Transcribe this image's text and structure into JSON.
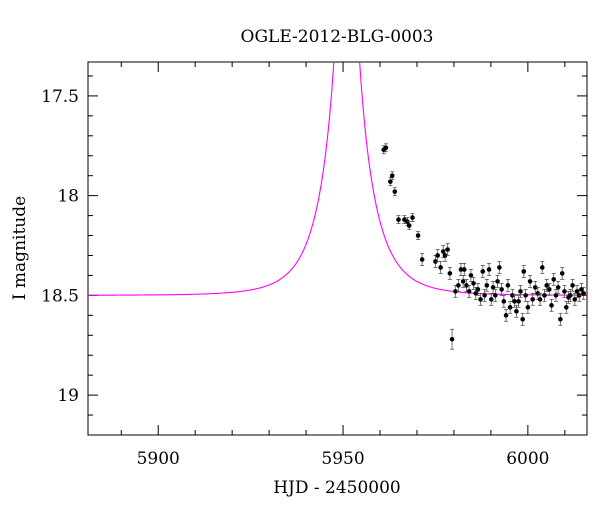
{
  "chart_data": {
    "type": "scatter",
    "title": "OGLE-2012-BLG-0003",
    "xlabel": "HJD - 2450000",
    "ylabel": "I magnitude",
    "xlim": [
      5881,
      6016
    ],
    "ylim": [
      17.33,
      19.2
    ],
    "y_inverted": true,
    "x_ticks": [
      5900,
      5950,
      6000
    ],
    "y_ticks": [
      17.5,
      18,
      18.5,
      19
    ],
    "x_tick_labels": [
      "5900",
      "5950",
      "6000"
    ],
    "y_tick_labels": [
      "17.5",
      "18",
      "18.5",
      "19"
    ],
    "grid": false,
    "model_color": "#ff00ff",
    "point_color": "#000000",
    "model": {
      "type": "pspl",
      "baseline_mag": 18.5,
      "t0": 5951,
      "tE": 9.8,
      "u0": 0.002
    },
    "series": [
      {
        "points": [
          [
            5961.0,
            17.77,
            0.02
          ],
          [
            5961.6,
            17.76,
            0.02
          ],
          [
            5962.8,
            17.93,
            0.02
          ],
          [
            5963.3,
            17.9,
            0.02
          ],
          [
            5964.0,
            17.98,
            0.02
          ],
          [
            5965.0,
            18.12,
            0.02
          ],
          [
            5966.6,
            18.12,
            0.02
          ],
          [
            5967.4,
            18.13,
            0.02
          ],
          [
            5967.9,
            18.15,
            0.02
          ],
          [
            5968.8,
            18.11,
            0.02
          ],
          [
            5970.3,
            18.2,
            0.02
          ],
          [
            5971.4,
            18.32,
            0.03
          ],
          [
            5975.0,
            18.33,
            0.03
          ],
          [
            5975.6,
            18.3,
            0.03
          ],
          [
            5976.4,
            18.36,
            0.03
          ],
          [
            5977.1,
            18.28,
            0.03
          ],
          [
            5977.6,
            18.3,
            0.03
          ],
          [
            5978.3,
            18.27,
            0.03
          ],
          [
            5978.9,
            18.39,
            0.03
          ],
          [
            5979.5,
            18.72,
            0.05
          ],
          [
            5980.4,
            18.48,
            0.03
          ],
          [
            5981.2,
            18.45,
            0.03
          ],
          [
            5981.9,
            18.37,
            0.03
          ],
          [
            5982.5,
            18.43,
            0.03
          ],
          [
            5982.8,
            18.37,
            0.03
          ],
          [
            5983.4,
            18.45,
            0.03
          ],
          [
            5984.1,
            18.48,
            0.03
          ],
          [
            5984.6,
            18.4,
            0.03
          ],
          [
            5985.3,
            18.44,
            0.03
          ],
          [
            5985.9,
            18.49,
            0.03
          ],
          [
            5986.5,
            18.47,
            0.03
          ],
          [
            5987.2,
            18.52,
            0.03
          ],
          [
            5987.8,
            18.38,
            0.03
          ],
          [
            5988.3,
            18.5,
            0.03
          ],
          [
            5988.9,
            18.45,
            0.03
          ],
          [
            5989.5,
            18.37,
            0.03
          ],
          [
            5990.1,
            18.52,
            0.03
          ],
          [
            5990.6,
            18.46,
            0.03
          ],
          [
            5991.2,
            18.5,
            0.03
          ],
          [
            5991.8,
            18.43,
            0.03
          ],
          [
            5992.3,
            18.36,
            0.03
          ],
          [
            5992.9,
            18.47,
            0.03
          ],
          [
            5993.5,
            18.53,
            0.03
          ],
          [
            5994.1,
            18.6,
            0.03
          ],
          [
            5994.6,
            18.45,
            0.03
          ],
          [
            5995.2,
            18.56,
            0.03
          ],
          [
            5995.8,
            18.5,
            0.03
          ],
          [
            5996.4,
            18.53,
            0.03
          ],
          [
            5996.9,
            18.58,
            0.03
          ],
          [
            5997.5,
            18.53,
            0.03
          ],
          [
            5998.0,
            18.48,
            0.03
          ],
          [
            5998.6,
            18.62,
            0.03
          ],
          [
            5998.9,
            18.38,
            0.03
          ],
          [
            5999.4,
            18.5,
            0.03
          ],
          [
            6000.0,
            18.56,
            0.03
          ],
          [
            6000.6,
            18.43,
            0.03
          ],
          [
            6001.3,
            18.52,
            0.03
          ],
          [
            6002.0,
            18.46,
            0.03
          ],
          [
            6002.7,
            18.49,
            0.03
          ],
          [
            6003.3,
            18.52,
            0.03
          ],
          [
            6003.9,
            18.36,
            0.03
          ],
          [
            6004.5,
            18.5,
            0.03
          ],
          [
            6005.1,
            18.45,
            0.03
          ],
          [
            6005.8,
            18.47,
            0.03
          ],
          [
            6006.4,
            18.55,
            0.03
          ],
          [
            6007.0,
            18.42,
            0.03
          ],
          [
            6007.6,
            18.5,
            0.03
          ],
          [
            6008.2,
            18.46,
            0.03
          ],
          [
            6008.8,
            18.62,
            0.03
          ],
          [
            6009.3,
            18.39,
            0.03
          ],
          [
            6009.9,
            18.48,
            0.03
          ],
          [
            6010.4,
            18.56,
            0.03
          ],
          [
            6011.0,
            18.51,
            0.03
          ],
          [
            6011.5,
            18.5,
            0.03
          ],
          [
            6012.1,
            18.45,
            0.03
          ],
          [
            6012.7,
            18.52,
            0.03
          ],
          [
            6013.3,
            18.48,
            0.03
          ],
          [
            6013.9,
            18.5,
            0.03
          ],
          [
            6014.5,
            18.47,
            0.03
          ],
          [
            6015.1,
            18.49,
            0.03
          ]
        ]
      }
    ]
  }
}
